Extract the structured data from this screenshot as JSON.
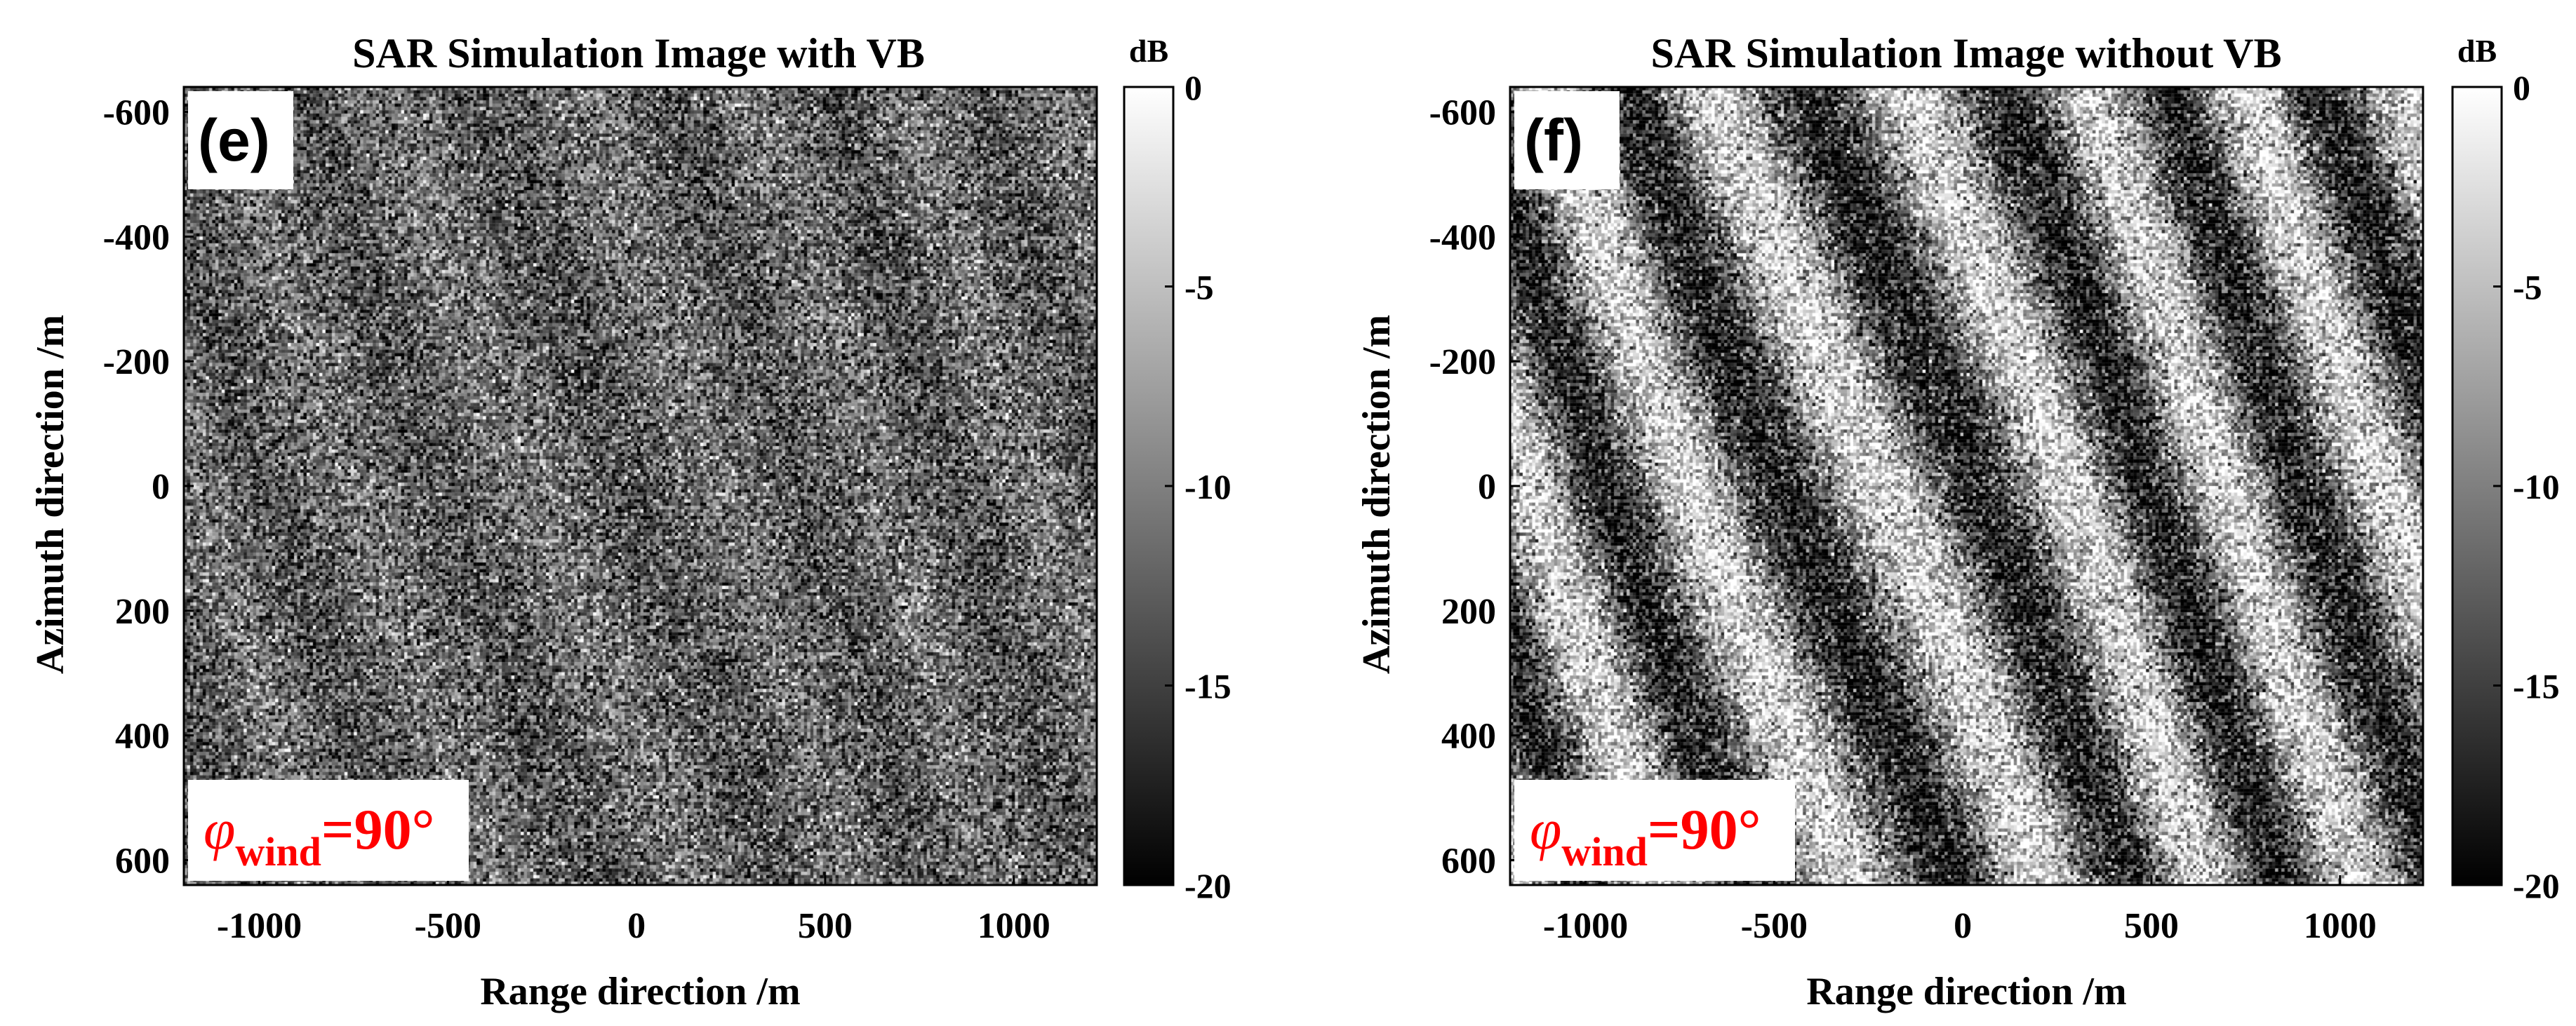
{
  "chart_data": [
    {
      "type": "heatmap",
      "panel_label": "(e)",
      "title": "SAR Simulation Image with VB",
      "xlabel": "Range direction /m",
      "ylabel": "Azimuth direction /m",
      "xlim": [
        -1200,
        1220
      ],
      "ylim": [
        -640,
        640
      ],
      "y_reversed": true,
      "xticks": [
        -1000,
        -500,
        0,
        500,
        1000
      ],
      "yticks": [
        -600,
        -400,
        -200,
        0,
        200,
        400,
        600
      ],
      "xtick_labels": [
        "-1000",
        "-500",
        "0",
        "500",
        "1000"
      ],
      "ytick_labels": [
        "-600",
        "-400",
        "-200",
        "0",
        "200",
        "400",
        "600"
      ],
      "colormap": "gray",
      "colorbar": {
        "unit": "dB",
        "range": [
          -20,
          0
        ],
        "ticks": [
          0,
          -5,
          -10,
          -15,
          -20
        ],
        "tick_labels": [
          "0",
          "-5",
          "-10",
          "-15",
          "-20"
        ]
      },
      "annotation": {
        "symbol": "φ",
        "subscript": "wind",
        "value": "=90°",
        "color": "#ff0000"
      },
      "texture": {
        "description_free": true,
        "mean_db": -12.5,
        "spread_db": 4.5,
        "stripe_strength_db": 1.5,
        "stripe_angle_deg": 60
      }
    },
    {
      "type": "heatmap",
      "panel_label": "(f)",
      "title": "SAR Simulation Image without VB",
      "xlabel": "Range direction /m",
      "ylabel": "Azimuth direction /m",
      "xlim": [
        -1200,
        1220
      ],
      "ylim": [
        -640,
        640
      ],
      "y_reversed": true,
      "xticks": [
        -1000,
        -500,
        0,
        500,
        1000
      ],
      "yticks": [
        -600,
        -400,
        -200,
        0,
        200,
        400,
        600
      ],
      "xtick_labels": [
        "-1000",
        "-500",
        "0",
        "500",
        "1000"
      ],
      "ytick_labels": [
        "-600",
        "-400",
        "-200",
        "0",
        "200",
        "400",
        "600"
      ],
      "colormap": "gray",
      "colorbar": {
        "unit": "dB",
        "range": [
          -20,
          0
        ],
        "ticks": [
          0,
          -5,
          -10,
          -15,
          -20
        ],
        "tick_labels": [
          "0",
          "-5",
          "-10",
          "-15",
          "-20"
        ]
      },
      "annotation": {
        "symbol": "φ",
        "subscript": "wind",
        "value": "=90°",
        "color": "#ff0000"
      },
      "texture": {
        "description_free": true,
        "mean_db": -10.5,
        "spread_db": 5.0,
        "stripe_strength_db": 7.5,
        "stripe_angle_deg": 58
      }
    }
  ]
}
